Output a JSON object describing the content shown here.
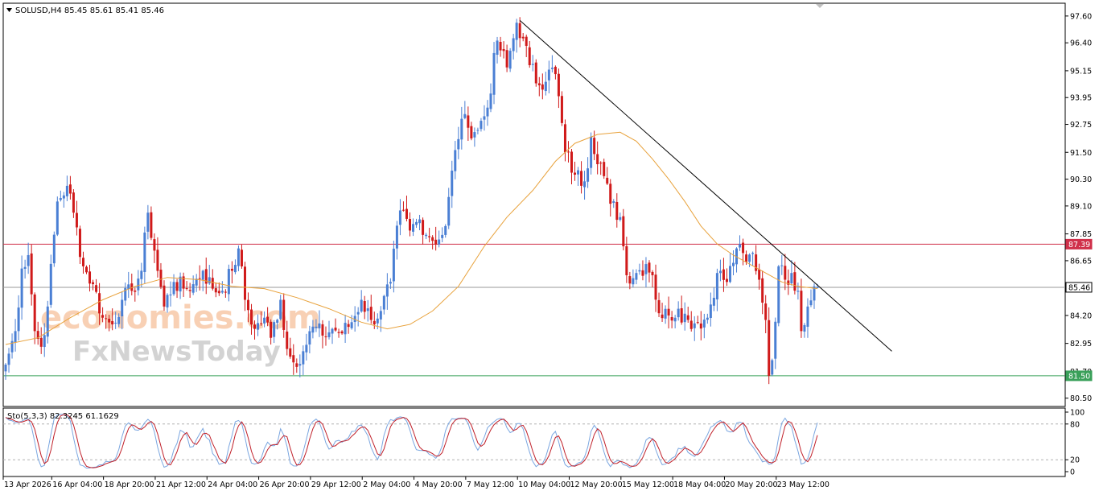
{
  "header": {
    "symbol_line": "SOLUSD,H4  85.45 85.61 85.41 85.46"
  },
  "watermark": {
    "line1": "economies.com",
    "line2": "FxNewsToday"
  },
  "colors": {
    "bull": "#4a7fd4",
    "bear": "#d01a1a",
    "ma": "#e8a23c",
    "trendline": "#000000",
    "resistance": "#d0304a",
    "support": "#3aa05a",
    "current": "#9a9a9a",
    "stoch_main": "#7aa6e0",
    "stoch_signal": "#c0202a"
  },
  "chart_data": {
    "type": "candlestick",
    "instrument": "SOLUSD",
    "timeframe": "H4",
    "last_ohlc": {
      "open": 85.45,
      "high": 85.61,
      "low": 85.41,
      "close": 85.46
    },
    "y_ticks": [
      97.6,
      96.4,
      95.15,
      93.95,
      92.75,
      91.5,
      90.3,
      89.1,
      87.85,
      86.65,
      85.45,
      84.2,
      82.95,
      81.7,
      80.5
    ],
    "y_range": [
      80.2,
      98.1
    ],
    "x_ticks": [
      "13 Apr 2026",
      "16 Apr 04:00",
      "18 Apr 20:00",
      "21 Apr 12:00",
      "24 Apr 04:00",
      "26 Apr 20:00",
      "29 Apr 12:00",
      "2 May 04:00",
      "4 May 20:00",
      "7 May 12:00",
      "10 May 04:00",
      "12 May 20:00",
      "15 May 12:00",
      "18 May 04:00",
      "20 May 20:00",
      "23 May 12:00"
    ],
    "x_tick_bar_index": [
      0,
      15,
      31,
      47,
      63,
      79,
      95,
      111,
      127,
      143,
      159,
      175,
      191,
      207,
      223,
      239
    ],
    "bar_count": 252,
    "anchors": [
      [
        0,
        82.0
      ],
      [
        3,
        83.5
      ],
      [
        5,
        86.3
      ],
      [
        7,
        86.9
      ],
      [
        9,
        83.5
      ],
      [
        11,
        82.8
      ],
      [
        13,
        84.6
      ],
      [
        16,
        89.3
      ],
      [
        19,
        90.0
      ],
      [
        21,
        88.8
      ],
      [
        24,
        86.4
      ],
      [
        27,
        85.6
      ],
      [
        30,
        84.1
      ],
      [
        33,
        83.8
      ],
      [
        36,
        84.9
      ],
      [
        39,
        85.3
      ],
      [
        42,
        86.2
      ],
      [
        44,
        88.8
      ],
      [
        46,
        87.1
      ],
      [
        49,
        84.6
      ],
      [
        52,
        85.7
      ],
      [
        55,
        85.4
      ],
      [
        58,
        85.6
      ],
      [
        61,
        86.2
      ],
      [
        64,
        85.4
      ],
      [
        67,
        85.3
      ],
      [
        70,
        86.2
      ],
      [
        72,
        87.2
      ],
      [
        74,
        84.9
      ],
      [
        77,
        83.6
      ],
      [
        80,
        84.1
      ],
      [
        82,
        83.2
      ],
      [
        85,
        84.9
      ],
      [
        87,
        82.7
      ],
      [
        89,
        82.1
      ],
      [
        92,
        82.6
      ],
      [
        95,
        83.7
      ],
      [
        98,
        83.3
      ],
      [
        101,
        83.6
      ],
      [
        104,
        83.4
      ],
      [
        107,
        83.9
      ],
      [
        110,
        84.9
      ],
      [
        113,
        84.0
      ],
      [
        116,
        84.4
      ],
      [
        119,
        85.7
      ],
      [
        122,
        88.9
      ],
      [
        125,
        88.0
      ],
      [
        128,
        88.5
      ],
      [
        131,
        87.7
      ],
      [
        134,
        87.6
      ],
      [
        136,
        88.2
      ],
      [
        139,
        91.6
      ],
      [
        141,
        93.0
      ],
      [
        143,
        92.6
      ],
      [
        146,
        92.5
      ],
      [
        149,
        93.5
      ],
      [
        152,
        96.5
      ],
      [
        155,
        95.3
      ],
      [
        158,
        97.3
      ],
      [
        160,
        96.6
      ],
      [
        162,
        95.4
      ],
      [
        165,
        94.5
      ],
      [
        168,
        95.2
      ],
      [
        170,
        95.0
      ],
      [
        173,
        91.5
      ],
      [
        176,
        90.5
      ],
      [
        179,
        90.2
      ],
      [
        181,
        92.2
      ],
      [
        184,
        91.0
      ],
      [
        187,
        89.2
      ],
      [
        190,
        88.6
      ],
      [
        192,
        86.0
      ],
      [
        195,
        86.1
      ],
      [
        198,
        86.5
      ],
      [
        200,
        86.0
      ],
      [
        202,
        84.3
      ],
      [
        205,
        84.2
      ],
      [
        208,
        84.5
      ],
      [
        211,
        84.0
      ],
      [
        214,
        83.9
      ],
      [
        217,
        84.1
      ],
      [
        220,
        86.1
      ],
      [
        223,
        85.7
      ],
      [
        226,
        87.2
      ],
      [
        229,
        86.6
      ],
      [
        231,
        87.0
      ],
      [
        233,
        85.8
      ],
      [
        235,
        84.0
      ],
      [
        236,
        81.5
      ],
      [
        237,
        82.2
      ],
      [
        239,
        86.4
      ],
      [
        241,
        85.8
      ],
      [
        243,
        86.1
      ],
      [
        245,
        85.3
      ],
      [
        246,
        83.5
      ],
      [
        248,
        84.6
      ],
      [
        250,
        85.5
      ],
      [
        251,
        85.46
      ]
    ],
    "moving_average": {
      "period": 50,
      "points": [
        [
          0,
          82.9
        ],
        [
          10,
          83.2
        ],
        [
          20,
          84.1
        ],
        [
          30,
          84.9
        ],
        [
          40,
          85.5
        ],
        [
          50,
          85.9
        ],
        [
          60,
          85.8
        ],
        [
          70,
          85.5
        ],
        [
          80,
          85.4
        ],
        [
          90,
          85.0
        ],
        [
          100,
          84.5
        ],
        [
          110,
          83.9
        ],
        [
          118,
          83.6
        ],
        [
          125,
          83.8
        ],
        [
          132,
          84.4
        ],
        [
          140,
          85.5
        ],
        [
          148,
          87.3
        ],
        [
          155,
          88.6
        ],
        [
          163,
          89.8
        ],
        [
          170,
          91.1
        ],
        [
          176,
          91.9
        ],
        [
          183,
          92.3
        ],
        [
          190,
          92.4
        ],
        [
          195,
          92.0
        ],
        [
          200,
          91.2
        ],
        [
          205,
          90.3
        ],
        [
          210,
          89.3
        ],
        [
          215,
          88.2
        ],
        [
          220,
          87.4
        ],
        [
          225,
          86.9
        ],
        [
          230,
          86.5
        ],
        [
          235,
          86.1
        ],
        [
          240,
          85.7
        ],
        [
          245,
          85.5
        ],
        [
          251,
          85.4
        ]
      ]
    },
    "trendline": {
      "start": [
        159,
        97.4
      ],
      "end": [
        274,
        82.6
      ]
    },
    "horizontal_levels": [
      {
        "value": 87.39,
        "label": "87.39",
        "role": "resistance"
      },
      {
        "value": 81.5,
        "label": "81.50",
        "role": "support"
      },
      {
        "value": 85.46,
        "label": "85.46",
        "role": "current"
      }
    ],
    "stochastic": {
      "label": "Sto(5,3,3) 82.3245 61.1629",
      "main": 82.3245,
      "signal": 61.1629,
      "levels": [
        80,
        20
      ],
      "axis_ticks": [
        100,
        80,
        20,
        0
      ]
    }
  }
}
